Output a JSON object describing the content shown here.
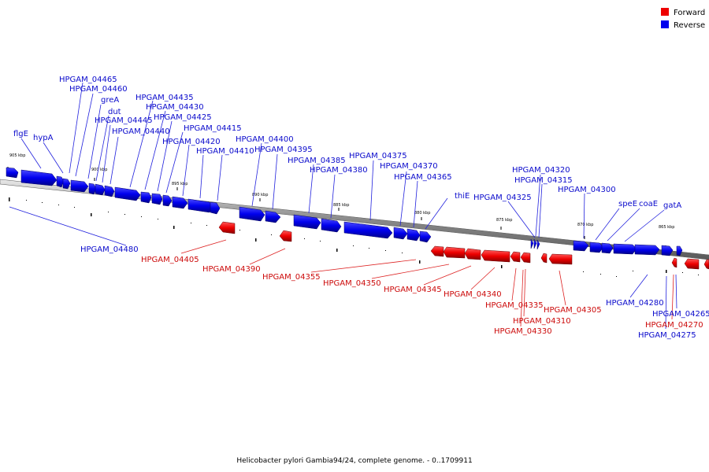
{
  "legend": {
    "forward_label": "Forward",
    "reverse_label": "Reverse",
    "forward_color": "#ee0000",
    "reverse_color": "#0000ee"
  },
  "caption": "Helicobacter pylori Gambia94/24, complete genome. - 0..1709911",
  "ticks": [
    "905 kbp",
    "900 kbp",
    "895 kbp",
    "890 kbp",
    "885 kbp",
    "880 kbp",
    "875 kbp",
    "870 kbp",
    "865 kbp"
  ],
  "reverse_genes": [
    "flgE",
    "hypA",
    "HPGAM_04465",
    "HPGAM_04460",
    "greA",
    "dut",
    "HPGAM_04445",
    "HPGAM_04440",
    "HPGAM_04435",
    "HPGAM_04430",
    "HPGAM_04425",
    "HPGAM_04420",
    "HPGAM_04415",
    "HPGAM_04410",
    "HPGAM_04400",
    "HPGAM_04395",
    "HPGAM_04385",
    "HPGAM_04380",
    "HPGAM_04375",
    "HPGAM_04370",
    "HPGAM_04365",
    "thiE",
    "HPGAM_04325",
    "HPGAM_04320",
    "HPGAM_04315",
    "HPGAM_04300",
    "speE",
    "coaE",
    "gatA",
    "HPGAM_04480",
    "HPGAM_04280",
    "HPGAM_04265",
    "HPGAM_04275"
  ],
  "forward_genes": [
    "HPGAM_04405",
    "HPGAM_04390",
    "HPGAM_04355",
    "HPGAM_04350",
    "HPGAM_04345",
    "HPGAM_04340",
    "HPGAM_04335",
    "HPGAM_04310",
    "HPGAM_04330",
    "HPGAM_04305",
    "HPGAM_04270"
  ]
}
